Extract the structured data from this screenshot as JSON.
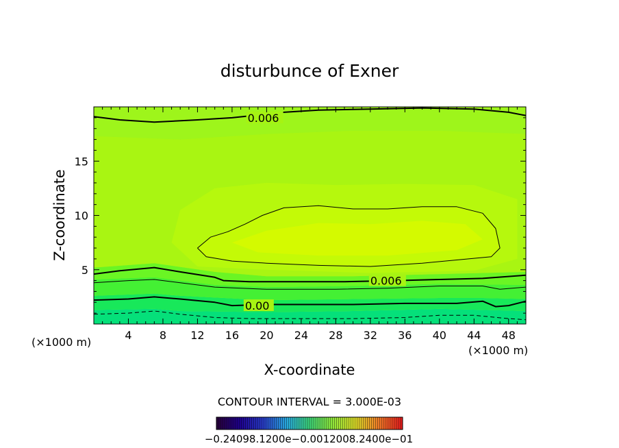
{
  "chart_data": {
    "type": "heatmap",
    "title": "disturbunce of Exner",
    "xlabel": "X-coordinate",
    "ylabel": "Z-coordinate",
    "x_unit_left": "(×1000 m)",
    "x_unit_right": "(×1000 m)",
    "xlim": [
      0,
      50
    ],
    "ylim": [
      0,
      20
    ],
    "x_ticks": [
      4,
      8,
      12,
      16,
      20,
      24,
      28,
      32,
      36,
      40,
      44,
      48
    ],
    "y_ticks": [
      5,
      10,
      15
    ],
    "contour_interval_text": "CONTOUR INTERVAL = 3.000E-03",
    "contour_labels": [
      {
        "text": "0.006",
        "x": 17.8,
        "z": 19.0
      },
      {
        "text": "0.006",
        "x": 32.0,
        "z": 4.0
      },
      {
        "text": "0.00",
        "x": 17.5,
        "z": 1.7
      }
    ],
    "colorbar": {
      "range": [
        -0.024,
        0.024
      ],
      "text": "−0.240​0e−01 −0.1200e−01 0.000 0.1200e−01 0.2400e−01",
      "raw_label": "−0.24098.1200e−0.0012008.2400e−01"
    },
    "contours": [
      {
        "level": 0.006,
        "style": "thick",
        "points": [
          [
            0,
            19.1
          ],
          [
            3,
            18.8
          ],
          [
            7,
            18.6
          ],
          [
            12,
            18.8
          ],
          [
            16,
            19.0
          ],
          [
            22,
            19.5
          ],
          [
            26,
            19.7
          ],
          [
            32,
            19.8
          ],
          [
            38,
            19.9
          ],
          [
            44,
            19.8
          ],
          [
            48,
            19.5
          ],
          [
            50,
            19.2
          ]
        ]
      },
      {
        "level": 0.009,
        "style": "thin",
        "points": [
          [
            12.0,
            7.0
          ],
          [
            13.5,
            8.0
          ],
          [
            15.5,
            8.5
          ],
          [
            17.5,
            9.2
          ],
          [
            19.5,
            10.0
          ],
          [
            22,
            10.7
          ],
          [
            26,
            10.9
          ],
          [
            30,
            10.6
          ],
          [
            34,
            10.6
          ],
          [
            38,
            10.8
          ],
          [
            42,
            10.8
          ],
          [
            45,
            10.2
          ],
          [
            46.5,
            8.8
          ],
          [
            47.0,
            7.0
          ],
          [
            46,
            6.2
          ],
          [
            42,
            5.9
          ],
          [
            38,
            5.6
          ],
          [
            32,
            5.3
          ],
          [
            26,
            5.4
          ],
          [
            20,
            5.6
          ],
          [
            16,
            5.8
          ],
          [
            13,
            6.2
          ],
          [
            12.0,
            7.0
          ]
        ]
      },
      {
        "level": 0.006,
        "style": "thick",
        "points": [
          [
            0,
            4.6
          ],
          [
            3,
            4.9
          ],
          [
            7,
            5.2
          ],
          [
            10,
            4.8
          ],
          [
            14,
            4.3
          ],
          [
            15,
            4.0
          ],
          [
            18,
            3.9
          ],
          [
            22,
            3.9
          ],
          [
            26,
            3.9
          ],
          [
            29,
            3.9
          ],
          [
            35,
            4.0
          ],
          [
            40,
            4.1
          ],
          [
            45,
            4.2
          ],
          [
            50,
            4.5
          ]
        ]
      },
      {
        "level": 0.003,
        "style": "thin",
        "points": [
          [
            0,
            3.8
          ],
          [
            4,
            4.0
          ],
          [
            7,
            4.1
          ],
          [
            10,
            3.8
          ],
          [
            14,
            3.4
          ],
          [
            20,
            3.2
          ],
          [
            28,
            3.2
          ],
          [
            34,
            3.3
          ],
          [
            40,
            3.5
          ],
          [
            45,
            3.5
          ],
          [
            47,
            3.2
          ],
          [
            50,
            3.4
          ]
        ]
      },
      {
        "level": 0.0,
        "style": "thick",
        "points": [
          [
            0,
            2.2
          ],
          [
            4,
            2.3
          ],
          [
            7,
            2.5
          ],
          [
            10,
            2.3
          ],
          [
            14,
            2.0
          ],
          [
            16,
            1.7
          ],
          [
            20,
            1.8
          ],
          [
            26,
            1.8
          ],
          [
            30,
            1.8
          ],
          [
            36,
            1.9
          ],
          [
            42,
            1.9
          ],
          [
            45,
            2.1
          ],
          [
            46.5,
            1.6
          ],
          [
            48,
            1.7
          ],
          [
            50,
            2.1
          ]
        ]
      },
      {
        "level": -0.003,
        "style": "dashed",
        "points": [
          [
            0,
            0.9
          ],
          [
            4,
            1.0
          ],
          [
            7,
            1.2
          ],
          [
            10,
            0.9
          ],
          [
            14,
            0.6
          ],
          [
            18,
            0.5
          ],
          [
            24,
            0.5
          ],
          [
            30,
            0.5
          ],
          [
            36,
            0.6
          ],
          [
            40,
            0.8
          ],
          [
            44,
            0.8
          ],
          [
            48,
            0.5
          ],
          [
            50,
            0.4
          ]
        ]
      }
    ],
    "fill_bands": [
      {
        "color": "#05e07a",
        "points": [
          [
            0,
            0
          ],
          [
            50,
            0
          ],
          [
            50,
            1.2
          ],
          [
            45,
            1.3
          ],
          [
            40,
            1.4
          ],
          [
            30,
            1.2
          ],
          [
            20,
            1.1
          ],
          [
            10,
            1.2
          ],
          [
            7,
            1.4
          ],
          [
            0,
            1.3
          ]
        ]
      },
      {
        "color": "#18e85a",
        "points": [
          [
            0,
            1.3
          ],
          [
            7,
            1.4
          ],
          [
            10,
            1.2
          ],
          [
            20,
            1.1
          ],
          [
            30,
            1.2
          ],
          [
            40,
            1.4
          ],
          [
            45,
            1.3
          ],
          [
            50,
            1.2
          ],
          [
            50,
            2.3
          ],
          [
            45,
            2.4
          ],
          [
            40,
            2.4
          ],
          [
            30,
            2.3
          ],
          [
            20,
            2.2
          ],
          [
            10,
            2.6
          ],
          [
            7,
            2.8
          ],
          [
            0,
            2.6
          ]
        ]
      },
      {
        "color": "#44f034",
        "points": [
          [
            0,
            2.6
          ],
          [
            7,
            2.8
          ],
          [
            10,
            2.6
          ],
          [
            20,
            2.2
          ],
          [
            30,
            2.3
          ],
          [
            40,
            2.4
          ],
          [
            45,
            2.4
          ],
          [
            50,
            2.3
          ],
          [
            50,
            3.6
          ],
          [
            40,
            3.7
          ],
          [
            30,
            3.5
          ],
          [
            20,
            3.4
          ],
          [
            14,
            3.6
          ],
          [
            7,
            4.3
          ],
          [
            0,
            4.1
          ]
        ]
      },
      {
        "color": "#6af524",
        "points": [
          [
            0,
            4.1
          ],
          [
            7,
            4.3
          ],
          [
            14,
            3.6
          ],
          [
            20,
            3.4
          ],
          [
            30,
            3.5
          ],
          [
            40,
            3.7
          ],
          [
            50,
            3.6
          ],
          [
            50,
            4.8
          ],
          [
            40,
            4.6
          ],
          [
            30,
            4.4
          ],
          [
            20,
            4.4
          ],
          [
            14,
            4.8
          ],
          [
            7,
            5.6
          ],
          [
            0,
            5.2
          ]
        ]
      },
      {
        "color": "#a9f512",
        "points": [
          [
            0,
            5.2
          ],
          [
            7,
            5.6
          ],
          [
            14,
            4.8
          ],
          [
            20,
            4.4
          ],
          [
            30,
            4.4
          ],
          [
            40,
            4.6
          ],
          [
            50,
            4.8
          ],
          [
            50,
            17.5
          ],
          [
            40,
            17.8
          ],
          [
            30,
            17.8
          ],
          [
            20,
            17.5
          ],
          [
            10,
            17.0
          ],
          [
            0,
            17.3
          ]
        ]
      },
      {
        "color": "#b6f80d",
        "points": [
          [
            9,
            7.5
          ],
          [
            10,
            10.5
          ],
          [
            14,
            12.5
          ],
          [
            20,
            13.0
          ],
          [
            28,
            12.8
          ],
          [
            36,
            12.9
          ],
          [
            44,
            12.8
          ],
          [
            49,
            11.5
          ],
          [
            49,
            6.0
          ],
          [
            44,
            4.9
          ],
          [
            32,
            4.7
          ],
          [
            20,
            5.0
          ],
          [
            12,
            5.3
          ]
        ]
      },
      {
        "color": "#c4fa06",
        "points": [
          [
            12.0,
            7.0
          ],
          [
            13.5,
            8.0
          ],
          [
            15.5,
            8.5
          ],
          [
            17.5,
            9.2
          ],
          [
            19.5,
            10.0
          ],
          [
            22,
            10.7
          ],
          [
            26,
            10.9
          ],
          [
            30,
            10.6
          ],
          [
            34,
            10.6
          ],
          [
            38,
            10.8
          ],
          [
            42,
            10.8
          ],
          [
            45,
            10.2
          ],
          [
            46.5,
            8.8
          ],
          [
            47.0,
            7.0
          ],
          [
            46,
            6.2
          ],
          [
            42,
            5.9
          ],
          [
            38,
            5.6
          ],
          [
            32,
            5.3
          ],
          [
            26,
            5.4
          ],
          [
            20,
            5.6
          ],
          [
            16,
            5.8
          ],
          [
            13,
            6.2
          ]
        ]
      },
      {
        "color": "#d4fa00",
        "points": [
          [
            16,
            7.5
          ],
          [
            20,
            8.6
          ],
          [
            26,
            9.3
          ],
          [
            32,
            9.2
          ],
          [
            38,
            9.5
          ],
          [
            43,
            9.2
          ],
          [
            45,
            7.8
          ],
          [
            42,
            6.8
          ],
          [
            34,
            6.3
          ],
          [
            26,
            6.3
          ],
          [
            19,
            6.6
          ]
        ]
      },
      {
        "color": "#9ef51b",
        "points": [
          [
            0,
            17.3
          ],
          [
            10,
            17.0
          ],
          [
            20,
            17.5
          ],
          [
            30,
            17.8
          ],
          [
            40,
            17.8
          ],
          [
            50,
            17.5
          ],
          [
            50,
            20
          ],
          [
            0,
            20
          ]
        ]
      }
    ]
  },
  "colors": {
    "plot_background": "#a6f313",
    "line": "#000000"
  }
}
